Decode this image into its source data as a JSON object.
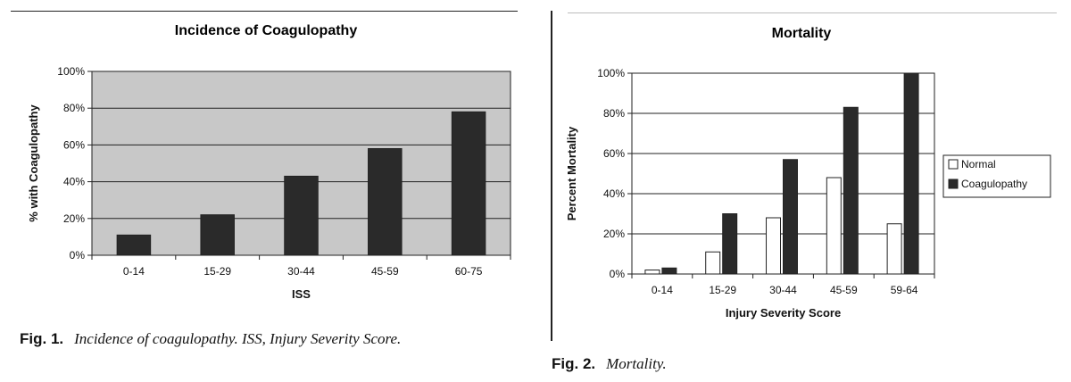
{
  "figures": [
    {
      "label": "Fig. 1.",
      "caption": "Incidence of coagulopathy. ISS, Injury Severity Score."
    },
    {
      "label": "Fig. 2.",
      "caption": "Mortality."
    }
  ],
  "chart_data": [
    {
      "type": "bar",
      "title": "Incidence of Coagulopathy",
      "xlabel": "ISS",
      "ylabel": "% with Coagulopathy",
      "categories": [
        "0-14",
        "15-29",
        "30-44",
        "45-59",
        "60-75"
      ],
      "series": [
        {
          "values": [
            11,
            22,
            43,
            58,
            78
          ],
          "color": "#2a2a2a"
        }
      ],
      "ylim": [
        0,
        100
      ],
      "yticks": [
        "0%",
        "20%",
        "40%",
        "60%",
        "80%",
        "100%"
      ],
      "grid": true,
      "background": "#c8c8c8"
    },
    {
      "type": "bar",
      "title": "Mortality",
      "xlabel": "Injury Severity Score",
      "ylabel": "Percent Mortality",
      "categories": [
        "0-14",
        "15-29",
        "30-44",
        "45-59",
        "59-64"
      ],
      "series": [
        {
          "name": "Normal",
          "values": [
            2,
            11,
            28,
            48,
            25
          ],
          "color": "#ffffff"
        },
        {
          "name": "Coagulopathy",
          "values": [
            3,
            30,
            57,
            83,
            100
          ],
          "color": "#2a2a2a"
        }
      ],
      "ylim": [
        0,
        100
      ],
      "yticks": [
        "0%",
        "20%",
        "40%",
        "60%",
        "80%",
        "100%"
      ],
      "grid": true,
      "legend": "right",
      "background": "#ffffff"
    }
  ]
}
